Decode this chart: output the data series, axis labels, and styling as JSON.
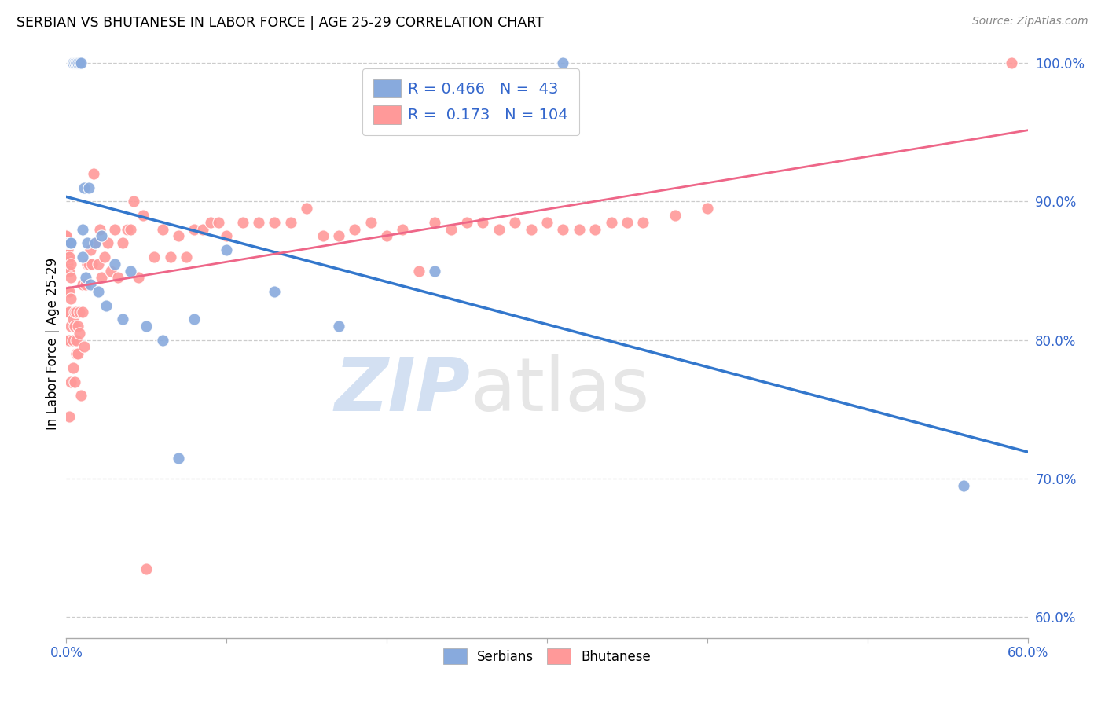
{
  "title": "SERBIAN VS BHUTANESE IN LABOR FORCE | AGE 25-29 CORRELATION CHART",
  "source": "Source: ZipAtlas.com",
  "ylabel": "In Labor Force | Age 25-29",
  "x_min": 0.0,
  "x_max": 0.6,
  "y_min": 0.585,
  "y_max": 1.01,
  "y_ticks_right": [
    0.6,
    0.7,
    0.8,
    0.9,
    1.0
  ],
  "legend_blue_R": "0.466",
  "legend_blue_N": " 43",
  "legend_pink_R": "0.173",
  "legend_pink_N": "104",
  "color_blue": "#88AADD",
  "color_pink": "#FF9999",
  "color_blue_line": "#3377CC",
  "color_pink_line": "#EE6688",
  "watermark_zip": "ZIP",
  "watermark_atlas": "atlas",
  "serbian_x": [
    0.0,
    0.001,
    0.002,
    0.002,
    0.002,
    0.003,
    0.003,
    0.003,
    0.004,
    0.004,
    0.005,
    0.005,
    0.006,
    0.006,
    0.006,
    0.007,
    0.007,
    0.008,
    0.009,
    0.01,
    0.01,
    0.011,
    0.012,
    0.013,
    0.014,
    0.015,
    0.018,
    0.02,
    0.022,
    0.025,
    0.03,
    0.035,
    0.04,
    0.05,
    0.06,
    0.07,
    0.08,
    0.1,
    0.13,
    0.17,
    0.23,
    0.31,
    0.56
  ],
  "serbian_y": [
    0.87,
    0.87,
    0.87,
    0.87,
    0.87,
    0.87,
    0.87,
    0.87,
    1.0,
    1.0,
    1.0,
    1.0,
    1.0,
    1.0,
    1.0,
    1.0,
    1.0,
    1.0,
    1.0,
    0.86,
    0.88,
    0.91,
    0.845,
    0.87,
    0.91,
    0.84,
    0.87,
    0.835,
    0.875,
    0.825,
    0.855,
    0.815,
    0.85,
    0.81,
    0.8,
    0.715,
    0.815,
    0.865,
    0.835,
    0.81,
    0.85,
    1.0,
    0.695
  ],
  "bhutanese_x": [
    0.0,
    0.0,
    0.0,
    0.0,
    0.0,
    0.0,
    0.0,
    0.001,
    0.001,
    0.001,
    0.001,
    0.001,
    0.001,
    0.001,
    0.001,
    0.002,
    0.002,
    0.002,
    0.002,
    0.002,
    0.002,
    0.003,
    0.003,
    0.003,
    0.003,
    0.003,
    0.004,
    0.004,
    0.004,
    0.005,
    0.005,
    0.005,
    0.006,
    0.006,
    0.006,
    0.007,
    0.007,
    0.008,
    0.008,
    0.009,
    0.01,
    0.01,
    0.011,
    0.012,
    0.013,
    0.014,
    0.015,
    0.016,
    0.017,
    0.018,
    0.02,
    0.021,
    0.022,
    0.024,
    0.026,
    0.028,
    0.03,
    0.032,
    0.035,
    0.038,
    0.04,
    0.042,
    0.045,
    0.048,
    0.05,
    0.055,
    0.06,
    0.065,
    0.07,
    0.075,
    0.08,
    0.085,
    0.09,
    0.095,
    0.1,
    0.11,
    0.12,
    0.13,
    0.14,
    0.15,
    0.16,
    0.17,
    0.18,
    0.19,
    0.2,
    0.21,
    0.22,
    0.23,
    0.24,
    0.25,
    0.26,
    0.27,
    0.28,
    0.29,
    0.3,
    0.31,
    0.32,
    0.33,
    0.34,
    0.35,
    0.36,
    0.38,
    0.4,
    0.59
  ],
  "bhutanese_y": [
    0.86,
    0.865,
    0.87,
    0.875,
    0.875,
    0.875,
    0.875,
    0.8,
    0.82,
    0.835,
    0.85,
    0.855,
    0.86,
    0.865,
    0.87,
    0.745,
    0.8,
    0.82,
    0.835,
    0.85,
    0.86,
    0.77,
    0.81,
    0.83,
    0.845,
    0.855,
    0.78,
    0.8,
    0.815,
    0.77,
    0.81,
    0.82,
    0.79,
    0.8,
    0.82,
    0.79,
    0.81,
    0.805,
    0.82,
    0.76,
    0.82,
    0.84,
    0.795,
    0.84,
    0.855,
    0.855,
    0.865,
    0.855,
    0.92,
    0.87,
    0.855,
    0.88,
    0.845,
    0.86,
    0.87,
    0.85,
    0.88,
    0.845,
    0.87,
    0.88,
    0.88,
    0.9,
    0.845,
    0.89,
    0.635,
    0.86,
    0.88,
    0.86,
    0.875,
    0.86,
    0.88,
    0.88,
    0.885,
    0.885,
    0.875,
    0.885,
    0.885,
    0.885,
    0.885,
    0.895,
    0.875,
    0.875,
    0.88,
    0.885,
    0.875,
    0.88,
    0.85,
    0.885,
    0.88,
    0.885,
    0.885,
    0.88,
    0.885,
    0.88,
    0.885,
    0.88,
    0.88,
    0.88,
    0.885,
    0.885,
    0.885,
    0.89,
    0.895,
    1.0
  ]
}
